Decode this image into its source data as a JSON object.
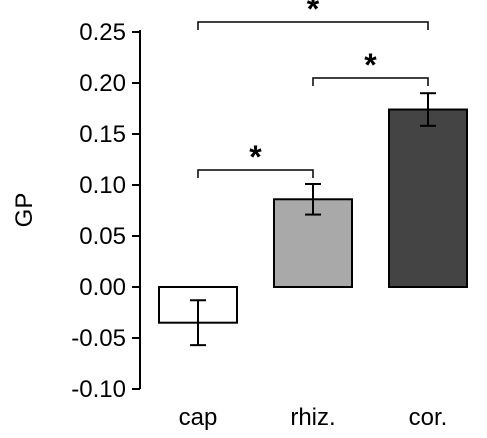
{
  "chart_data": {
    "type": "bar",
    "title": "",
    "xlabel": "",
    "ylabel": "GP",
    "ylim": [
      -0.1,
      0.25
    ],
    "yticks": [
      -0.1,
      -0.05,
      0.0,
      0.05,
      0.1,
      0.15,
      0.2,
      0.25
    ],
    "ytick_labels": [
      "-0.10",
      "-0.05",
      "0.00",
      "0.05",
      "0.10",
      "0.15",
      "0.20",
      "0.25"
    ],
    "categories": [
      "cap",
      "rhiz.",
      "cor."
    ],
    "values": [
      -0.035,
      0.086,
      0.174
    ],
    "errors": [
      0.022,
      0.015,
      0.016
    ],
    "colors": [
      "#ffffff",
      "#a9a9a9",
      "#444444"
    ],
    "edge_color": "#000000",
    "grid": false,
    "significance": [
      {
        "from": 0,
        "to": 1,
        "label": "*"
      },
      {
        "from": 1,
        "to": 2,
        "label": "*"
      },
      {
        "from": 0,
        "to": 2,
        "label": "*"
      }
    ]
  }
}
